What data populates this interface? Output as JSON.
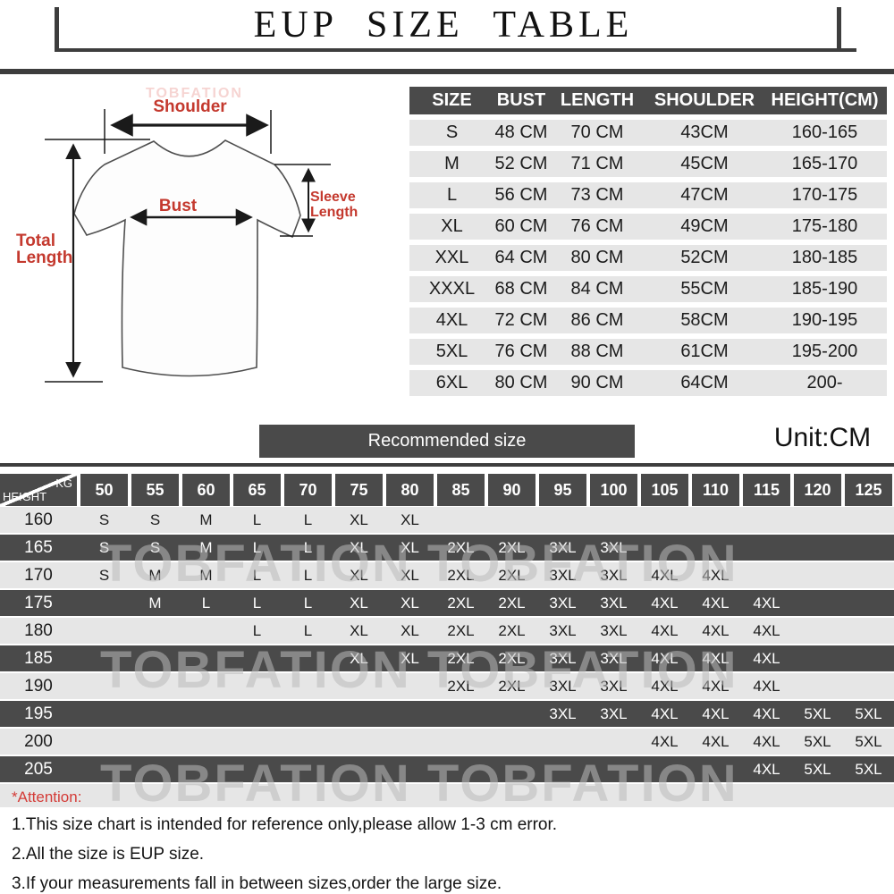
{
  "title": "EUP  SIZE TABLE",
  "diagram": {
    "shoulder_label": "Shoulder",
    "bust_label": "Bust",
    "total_length_line1": "Total",
    "total_length_line2": "Length",
    "sleeve_length_line1": "Sleeve",
    "sleeve_length_line2": "Length"
  },
  "size_chart": {
    "headers": [
      "SIZE",
      "BUST",
      "LENGTH",
      "SHOULDER",
      "HEIGHT(CM)"
    ],
    "rows": [
      [
        "S",
        "48 CM",
        "70 CM",
        "43CM",
        "160-165"
      ],
      [
        "M",
        "52 CM",
        "71 CM",
        "45CM",
        "165-170"
      ],
      [
        "L",
        "56 CM",
        "73 CM",
        "47CM",
        "170-175"
      ],
      [
        "XL",
        "60 CM",
        "76 CM",
        "49CM",
        "175-180"
      ],
      [
        "XXL",
        "64 CM",
        "80 CM",
        "52CM",
        "180-185"
      ],
      [
        "XXXL",
        "68 CM",
        "84 CM",
        "55CM",
        "185-190"
      ],
      [
        "4XL",
        "72 CM",
        "86 CM",
        "58CM",
        "190-195"
      ],
      [
        "5XL",
        "76 CM",
        "88 CM",
        "61CM",
        "195-200"
      ],
      [
        "6XL",
        "80 CM",
        "90 CM",
        "64CM",
        "200-"
      ]
    ]
  },
  "recommended_label": "Recommended size",
  "unit_label": "Unit:CM",
  "matrix": {
    "corner_top": "KG",
    "corner_bottom": "HEIGHT",
    "kg_columns": [
      "50",
      "55",
      "60",
      "65",
      "70",
      "75",
      "80",
      "85",
      "90",
      "95",
      "100",
      "105",
      "110",
      "115",
      "120",
      "125"
    ],
    "rows": [
      {
        "height": "160",
        "cells": [
          "S",
          "S",
          "M",
          "L",
          "L",
          "XL",
          "XL",
          "",
          "",
          "",
          "",
          "",
          "",
          "",
          "",
          ""
        ]
      },
      {
        "height": "165",
        "cells": [
          "S",
          "S",
          "M",
          "L",
          "L",
          "XL",
          "XL",
          "2XL",
          "2XL",
          "3XL",
          "3XL",
          "",
          "",
          "",
          "",
          ""
        ]
      },
      {
        "height": "170",
        "cells": [
          "S",
          "M",
          "M",
          "L",
          "L",
          "XL",
          "XL",
          "2XL",
          "2XL",
          "3XL",
          "3XL",
          "4XL",
          "4XL",
          "",
          "",
          ""
        ]
      },
      {
        "height": "175",
        "cells": [
          "",
          "M",
          "L",
          "L",
          "L",
          "XL",
          "XL",
          "2XL",
          "2XL",
          "3XL",
          "3XL",
          "4XL",
          "4XL",
          "4XL",
          "",
          ""
        ]
      },
      {
        "height": "180",
        "cells": [
          "",
          "",
          "",
          "L",
          "L",
          "XL",
          "XL",
          "2XL",
          "2XL",
          "3XL",
          "3XL",
          "4XL",
          "4XL",
          "4XL",
          "",
          ""
        ]
      },
      {
        "height": "185",
        "cells": [
          "",
          "",
          "",
          "",
          "",
          "XL",
          "XL",
          "2XL",
          "2XL",
          "3XL",
          "3XL",
          "4XL",
          "4XL",
          "4XL",
          "",
          ""
        ]
      },
      {
        "height": "190",
        "cells": [
          "",
          "",
          "",
          "",
          "",
          "",
          "",
          "2XL",
          "2XL",
          "3XL",
          "3XL",
          "4XL",
          "4XL",
          "4XL",
          "",
          ""
        ]
      },
      {
        "height": "195",
        "cells": [
          "",
          "",
          "",
          "",
          "",
          "",
          "",
          "",
          "",
          "3XL",
          "3XL",
          "4XL",
          "4XL",
          "4XL",
          "5XL",
          "5XL"
        ]
      },
      {
        "height": "200",
        "cells": [
          "",
          "",
          "",
          "",
          "",
          "",
          "",
          "",
          "",
          "",
          "",
          "4XL",
          "4XL",
          "4XL",
          "5XL",
          "5XL"
        ]
      },
      {
        "height": "205",
        "cells": [
          "",
          "",
          "",
          "",
          "",
          "",
          "",
          "",
          "",
          "",
          "",
          "",
          "",
          "4XL",
          "5XL",
          "5XL"
        ]
      }
    ]
  },
  "attention": {
    "title": "*Attention:",
    "notes": [
      "1.This size chart is intended for reference only,please allow 1-3 cm error.",
      "2.All the size is EUP size.",
      "3.If your measurements fall in between sizes,order the large size."
    ]
  },
  "watermark_single": "TOBFATION",
  "watermark_double": "TOBFATION  TOBFATION",
  "colors": {
    "dark_gray": "#4a4a4a",
    "light_row": "#e6e6e6",
    "accent_red": "#c4392e"
  }
}
